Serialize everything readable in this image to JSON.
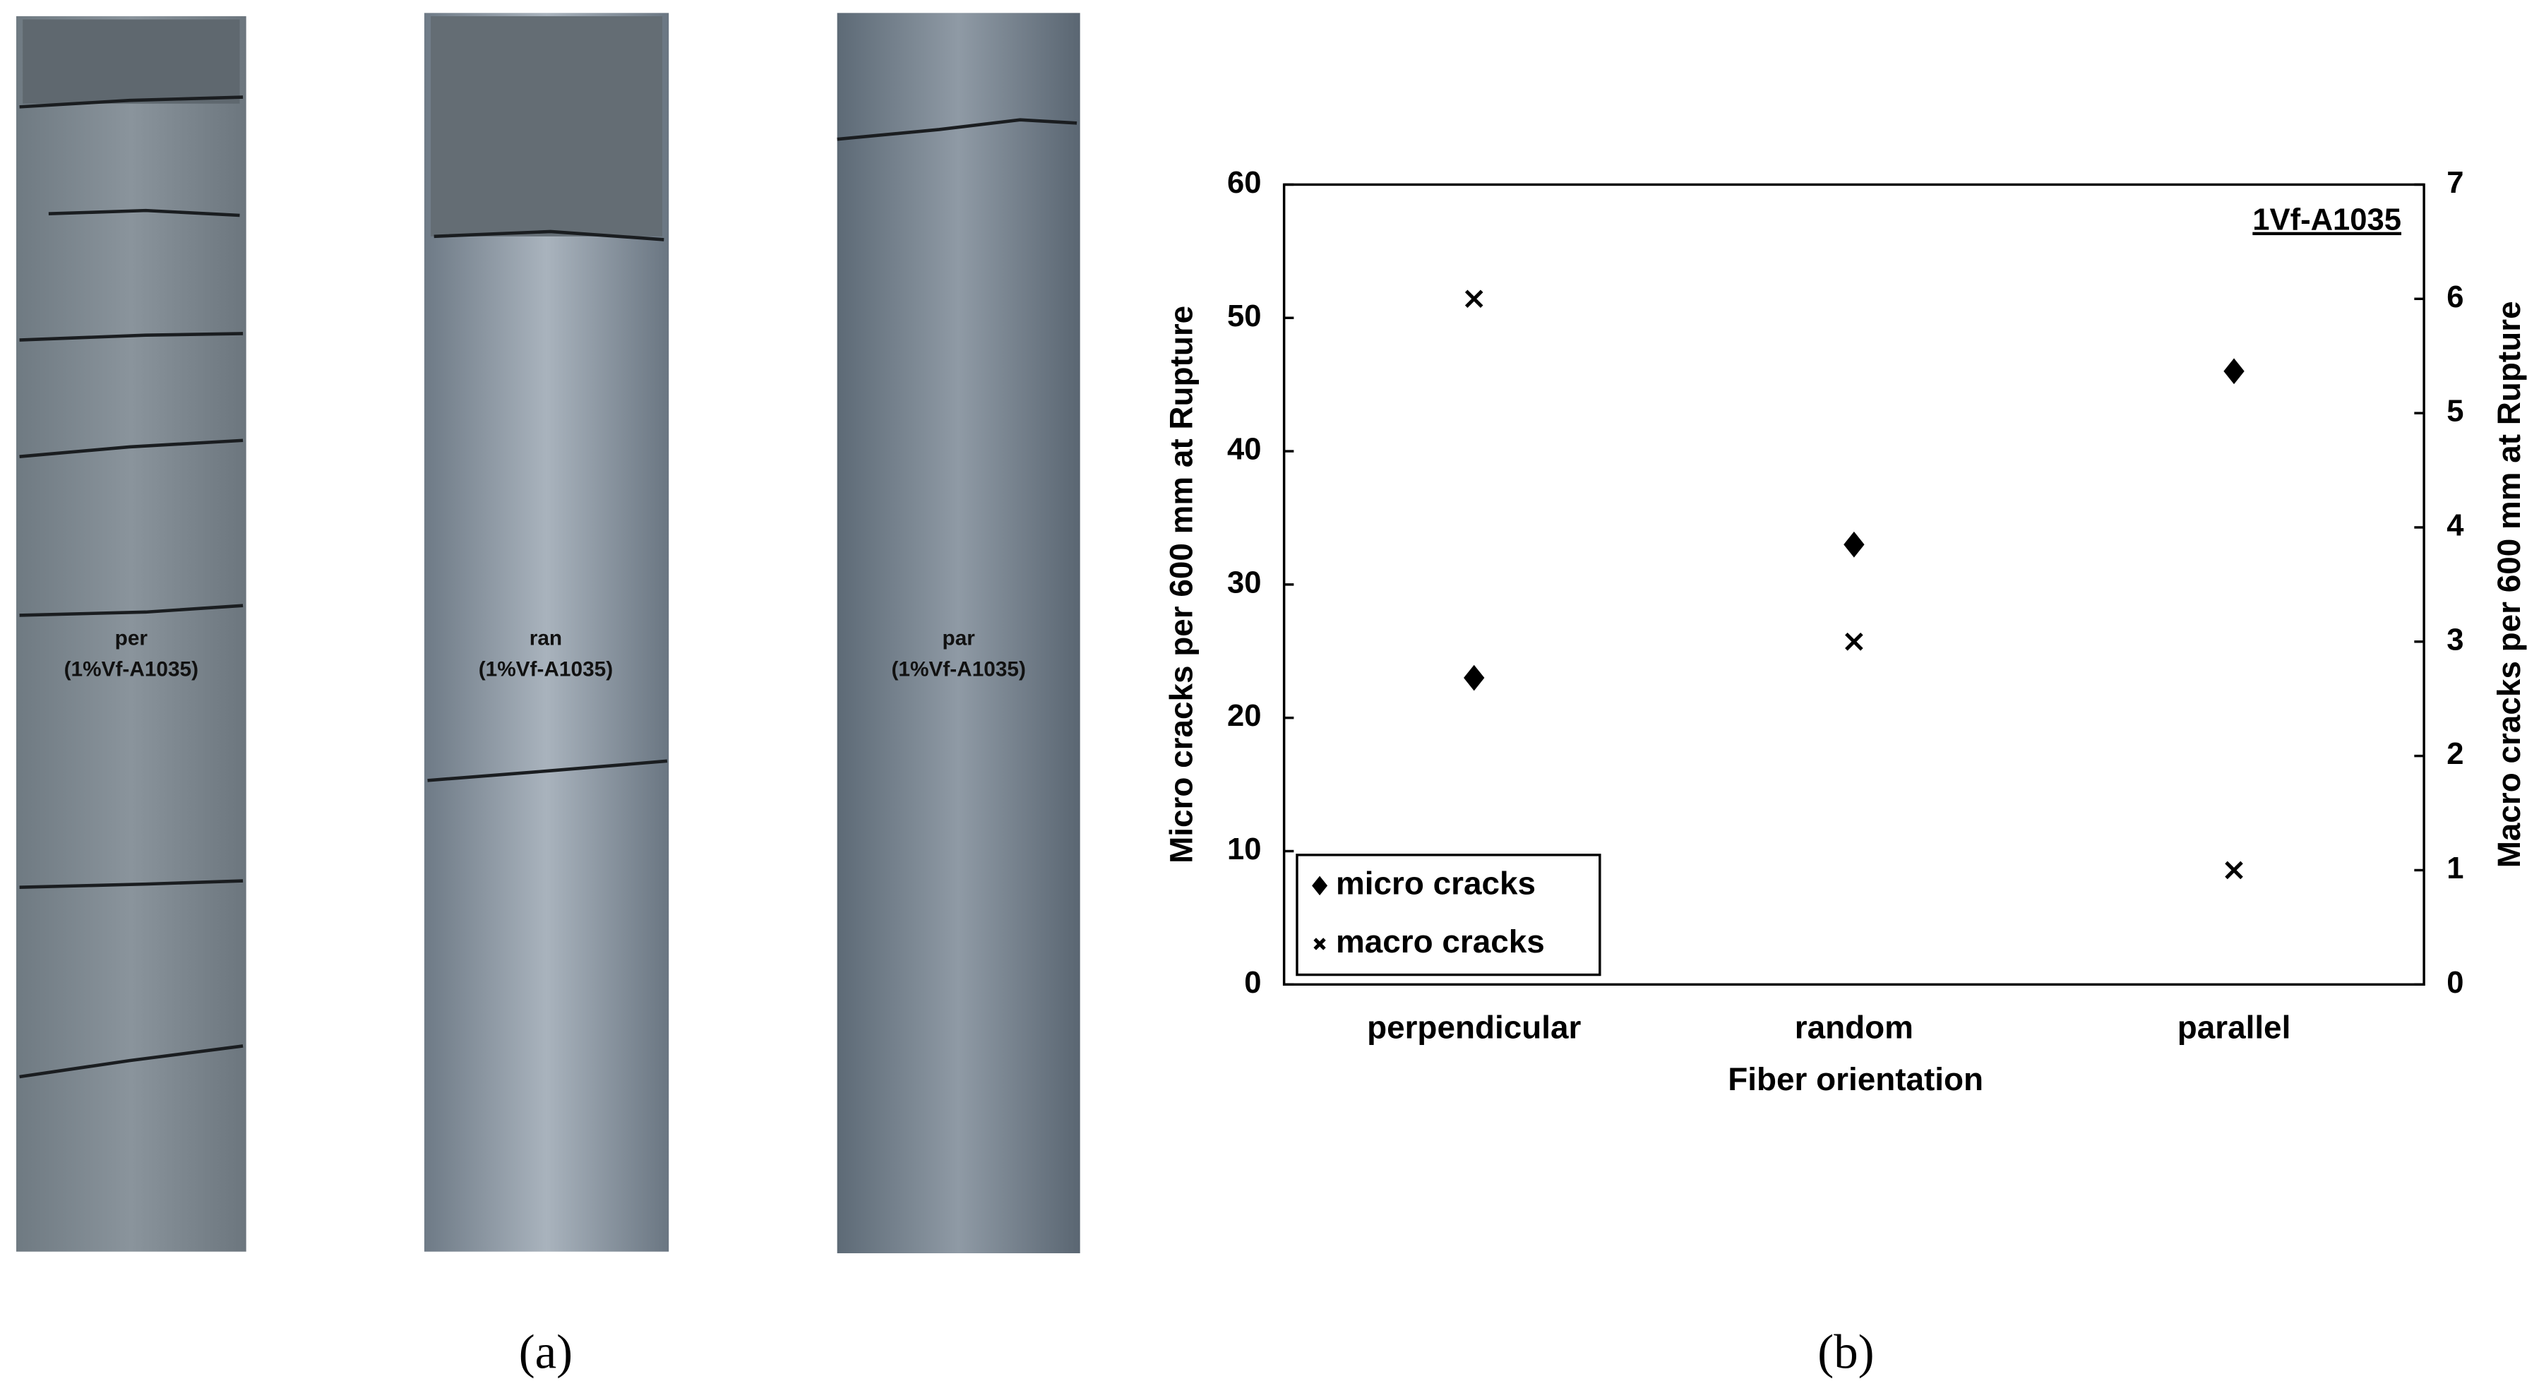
{
  "chart_data": {
    "type": "scatter",
    "categories": [
      "perpendicular",
      "random",
      "parallel"
    ],
    "series": [
      {
        "name": "micro cracks",
        "color": "#000000",
        "marker": "diamond",
        "values": [
          23,
          33,
          46
        ]
      },
      {
        "name": "macro cracks",
        "color": "#000000",
        "marker": "x",
        "axis": "y2",
        "values": [
          6,
          3,
          1
        ]
      }
    ],
    "ylim": [
      0,
      60
    ],
    "yticks": [
      0,
      10,
      20,
      30,
      40,
      50,
      60
    ],
    "y2lim": [
      0,
      7
    ],
    "y2ticks": [
      0,
      1,
      2,
      3,
      4,
      5,
      6,
      7
    ],
    "xlabel": "Fiber orientation",
    "ylabel": "Micro cracks per 600 mm at Rupture",
    "y2label": "Macro cracks per 600 mm at Rupture",
    "annotation": "1Vf-A1035",
    "legend": "lower left"
  },
  "photos": [
    {
      "label": "per",
      "sublabel": "(1%Vf-A1035)"
    },
    {
      "label": "ran",
      "sublabel": "(1%Vf-A1035)"
    },
    {
      "label": "par",
      "sublabel": "(1%Vf-A1035)"
    }
  ],
  "panel_labels": [
    "(a)",
    "(b)"
  ]
}
